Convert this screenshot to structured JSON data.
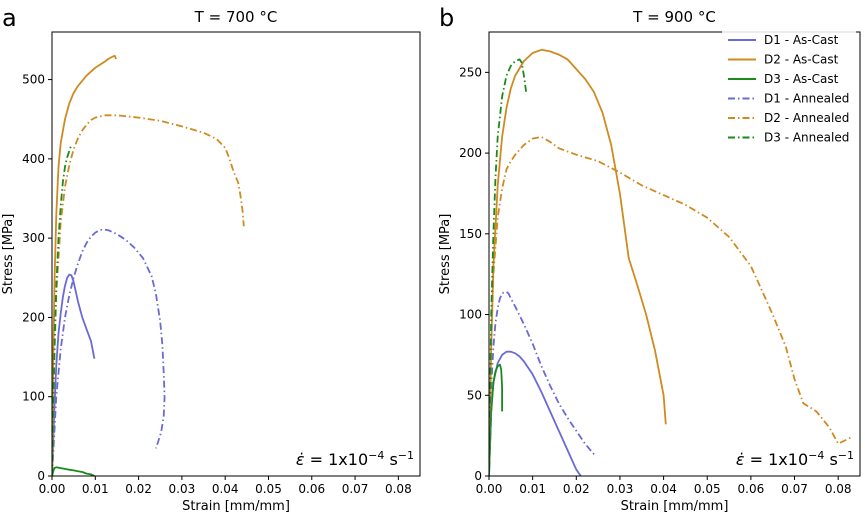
{
  "chart_data": [
    {
      "type": "line",
      "panel_letter": "a",
      "title": "T = 700 °C",
      "xlabel": "Strain [mm/mm]",
      "ylabel": "Stress [MPa]",
      "xlim": [
        0,
        0.085
      ],
      "ylim": [
        0,
        560
      ],
      "xticks": [
        0,
        0.01,
        0.02,
        0.03,
        0.04,
        0.05,
        0.06,
        0.07,
        0.08
      ],
      "xtick_labels": [
        "0.00",
        "0.01",
        "0.02",
        "0.03",
        "0.04",
        "0.05",
        "0.06",
        "0.07",
        "0.08"
      ],
      "yticks": [
        0,
        100,
        200,
        300,
        400,
        500
      ],
      "ytick_labels": [
        "0",
        "100",
        "200",
        "300",
        "400",
        "500"
      ],
      "annotation": {
        "symbol": "ε̇",
        "text": " = 1x10",
        "exponent": "−4",
        "unit": " s",
        "unit_exponent": "−1"
      },
      "series": [
        {
          "name": "D1 - As-Cast",
          "color": "#6a6ad6",
          "style": "solid",
          "x": [
            0,
            0.0005,
            0.001,
            0.0015,
            0.002,
            0.0025,
            0.003,
            0.0035,
            0.004,
            0.0045,
            0.005,
            0.006,
            0.007,
            0.008,
            0.009,
            0.0098
          ],
          "y": [
            0,
            80,
            140,
            180,
            205,
            225,
            240,
            250,
            254,
            253,
            245,
            220,
            200,
            185,
            170,
            148
          ]
        },
        {
          "name": "D2 - As-Cast",
          "color": "#d08a1f",
          "style": "solid",
          "x": [
            0,
            0.0003,
            0.0006,
            0.001,
            0.0015,
            0.002,
            0.003,
            0.004,
            0.005,
            0.006,
            0.008,
            0.01,
            0.012,
            0.013,
            0.014,
            0.0145,
            0.0148
          ],
          "y": [
            0,
            150,
            250,
            330,
            390,
            420,
            450,
            470,
            483,
            492,
            505,
            515,
            522,
            526,
            529,
            530,
            526
          ]
        },
        {
          "name": "D3 - As-Cast",
          "color": "#1a8a1a",
          "style": "solid",
          "x": [
            0,
            0.0005,
            0.001,
            0.002,
            0.003,
            0.004,
            0.005,
            0.006,
            0.007,
            0.008,
            0.009,
            0.0098
          ],
          "y": [
            0,
            10,
            11,
            10,
            9,
            8,
            7,
            6,
            5,
            3,
            2,
            0
          ]
        },
        {
          "name": "D1 - Annealed",
          "color": "#6a6ad6",
          "style": "dashdot",
          "x": [
            0,
            0.001,
            0.002,
            0.003,
            0.004,
            0.005,
            0.006,
            0.007,
            0.008,
            0.009,
            0.01,
            0.011,
            0.012,
            0.013,
            0.015,
            0.017,
            0.019,
            0.021,
            0.023,
            0.024,
            0.025,
            0.0255,
            0.0258,
            0.026,
            0.0258,
            0.0252,
            0.0245,
            0.024
          ],
          "y": [
            0,
            100,
            160,
            200,
            228,
            250,
            268,
            283,
            294,
            302,
            307,
            310,
            311,
            310,
            305,
            298,
            288,
            275,
            252,
            230,
            195,
            165,
            130,
            100,
            75,
            55,
            43,
            35
          ]
        },
        {
          "name": "D2 - Annealed",
          "color": "#d08a1f",
          "style": "dashdot",
          "x": [
            0,
            0.0005,
            0.001,
            0.002,
            0.003,
            0.004,
            0.005,
            0.006,
            0.007,
            0.008,
            0.009,
            0.01,
            0.012,
            0.015,
            0.02,
            0.025,
            0.03,
            0.035,
            0.038,
            0.04,
            0.041,
            0.042,
            0.043,
            0.0435,
            0.044,
            0.0443
          ],
          "y": [
            0,
            140,
            230,
            320,
            365,
            392,
            412,
            426,
            436,
            443,
            449,
            452,
            455,
            455,
            452,
            448,
            441,
            433,
            425,
            414,
            400,
            383,
            370,
            355,
            335,
            315
          ]
        },
        {
          "name": "D3 - Annealed",
          "color": "#1a8a1a",
          "style": "dashdot",
          "x": [
            0,
            0.0003,
            0.0006,
            0.001,
            0.0015,
            0.002,
            0.0025,
            0.003,
            0.0035,
            0.004,
            0.0045
          ],
          "y": [
            0,
            100,
            170,
            240,
            300,
            340,
            370,
            390,
            402,
            410,
            418
          ]
        }
      ]
    },
    {
      "type": "line",
      "panel_letter": "b",
      "title": "T = 900 °C",
      "xlabel": "Strain [mm/mm]",
      "ylabel": "Stress [MPa]",
      "xlim": [
        0,
        0.085
      ],
      "ylim": [
        0,
        275
      ],
      "xticks": [
        0,
        0.01,
        0.02,
        0.03,
        0.04,
        0.05,
        0.06,
        0.07,
        0.08
      ],
      "xtick_labels": [
        "0.00",
        "0.01",
        "0.02",
        "0.03",
        "0.04",
        "0.05",
        "0.06",
        "0.07",
        "0.08"
      ],
      "yticks": [
        0,
        50,
        100,
        150,
        200,
        250
      ],
      "ytick_labels": [
        "0",
        "50",
        "100",
        "150",
        "200",
        "250"
      ],
      "legend_position": "top-right",
      "annotation": {
        "symbol": "ε̇",
        "text": " = 1x10",
        "exponent": "−4",
        "unit": " s",
        "unit_exponent": "−1"
      },
      "series": [
        {
          "name": "D1 - As-Cast",
          "color": "#6a6ad6",
          "style": "solid",
          "x": [
            0,
            0.0005,
            0.001,
            0.002,
            0.003,
            0.004,
            0.005,
            0.006,
            0.007,
            0.008,
            0.01,
            0.012,
            0.014,
            0.016,
            0.018,
            0.019,
            0.02,
            0.021
          ],
          "y": [
            0,
            40,
            58,
            70,
            75,
            77,
            77,
            76,
            74,
            71,
            63,
            52,
            40,
            28,
            16,
            10,
            4,
            0
          ]
        },
        {
          "name": "D2 - As-Cast",
          "color": "#d08a1f",
          "style": "solid",
          "x": [
            0,
            0.0005,
            0.001,
            0.002,
            0.003,
            0.004,
            0.005,
            0.006,
            0.008,
            0.01,
            0.012,
            0.014,
            0.016,
            0.018,
            0.02,
            0.022,
            0.024,
            0.026,
            0.028,
            0.03,
            0.031,
            0.032,
            0.034,
            0.036,
            0.038,
            0.04,
            0.0405
          ],
          "y": [
            0,
            80,
            130,
            180,
            210,
            228,
            240,
            248,
            257,
            262,
            264,
            263,
            261,
            258,
            252,
            246,
            238,
            225,
            205,
            175,
            155,
            135,
            118,
            100,
            78,
            50,
            32
          ]
        },
        {
          "name": "D3 - As-Cast",
          "color": "#1a8a1a",
          "style": "solid",
          "x": [
            0,
            0.0005,
            0.001,
            0.0015,
            0.002,
            0.0025,
            0.0028,
            0.003,
            0.003
          ],
          "y": [
            0,
            40,
            58,
            65,
            68,
            69,
            66,
            55,
            40
          ]
        },
        {
          "name": "D1 - Annealed",
          "color": "#6a6ad6",
          "style": "dashdot",
          "x": [
            0,
            0.0005,
            0.001,
            0.0015,
            0.002,
            0.0025,
            0.003,
            0.0035,
            0.004,
            0.0045,
            0.005,
            0.006,
            0.008,
            0.01,
            0.012,
            0.014,
            0.016,
            0.018,
            0.02,
            0.022,
            0.0245
          ],
          "y": [
            0,
            55,
            80,
            95,
            104,
            110,
            113,
            114,
            114,
            113,
            110,
            105,
            94,
            82,
            68,
            56,
            45,
            36,
            28,
            20,
            12
          ]
        },
        {
          "name": "D2 - Annealed",
          "color": "#d08a1f",
          "style": "dashdot",
          "x": [
            0,
            0.0005,
            0.001,
            0.002,
            0.003,
            0.004,
            0.005,
            0.006,
            0.008,
            0.01,
            0.012,
            0.014,
            0.016,
            0.018,
            0.02,
            0.025,
            0.03,
            0.035,
            0.04,
            0.045,
            0.05,
            0.055,
            0.06,
            0.065,
            0.068,
            0.07,
            0.072,
            0.075,
            0.078,
            0.08,
            0.083
          ],
          "y": [
            0,
            80,
            125,
            160,
            178,
            190,
            195,
            199,
            205,
            209,
            210,
            207,
            203,
            201,
            199,
            195,
            188,
            180,
            174,
            168,
            160,
            148,
            130,
            100,
            80,
            60,
            45,
            40,
            30,
            20,
            24
          ]
        },
        {
          "name": "D3 - Annealed",
          "color": "#1a8a1a",
          "style": "dashdot",
          "x": [
            0,
            0.0005,
            0.001,
            0.0015,
            0.002,
            0.003,
            0.004,
            0.005,
            0.006,
            0.007,
            0.0075,
            0.008,
            0.0085
          ],
          "y": [
            0,
            100,
            150,
            185,
            210,
            235,
            248,
            254,
            257,
            258,
            256,
            248,
            238
          ]
        }
      ]
    }
  ]
}
